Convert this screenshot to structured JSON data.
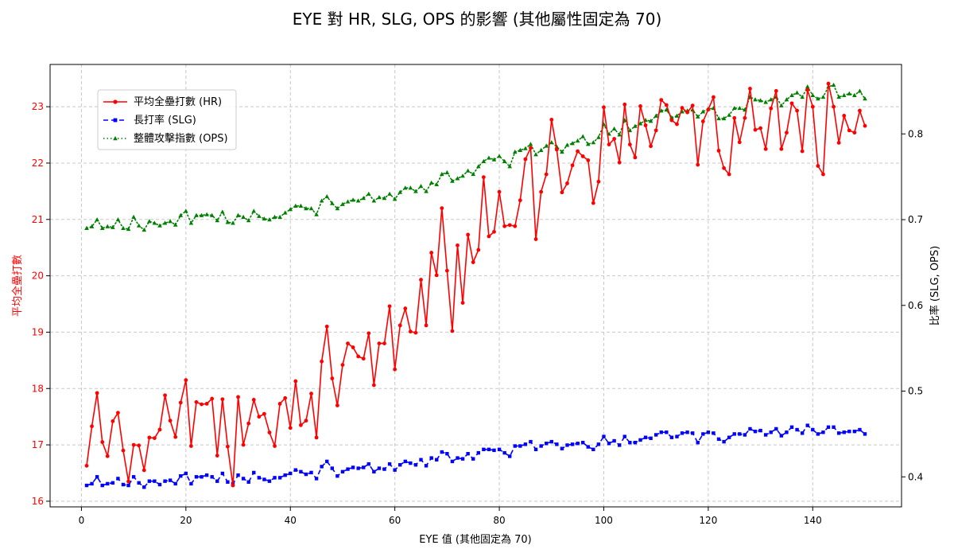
{
  "chart_data": {
    "type": "line",
    "title": "EYE 對 HR, SLG, OPS 的影響 (其他屬性固定為 70)",
    "xlabel": "EYE 值 (其他固定為 70)",
    "ylabel_left": "平均全壘打數",
    "ylabel_right": "比率 (SLG, OPS)",
    "xlim": [
      -6,
      157
    ],
    "ylim_left": [
      15.9,
      23.75
    ],
    "ylim_right": [
      0.365,
      0.881
    ],
    "x_ticks": [
      0,
      20,
      40,
      60,
      80,
      100,
      120,
      140
    ],
    "y_ticks_left": [
      16,
      17,
      18,
      19,
      20,
      21,
      22,
      23
    ],
    "y_ticks_right": [
      0.4,
      0.5,
      0.6,
      0.7,
      0.8
    ],
    "y_ticks_right_labels": [
      "0.4",
      "0.5",
      "0.6",
      "0.7",
      "0.8"
    ],
    "grid": true,
    "legend_position": "top-left",
    "x": [
      1,
      2,
      3,
      4,
      5,
      6,
      7,
      8,
      9,
      10,
      11,
      12,
      13,
      14,
      15,
      16,
      17,
      18,
      19,
      20,
      21,
      22,
      23,
      24,
      25,
      26,
      27,
      28,
      29,
      30,
      31,
      32,
      33,
      34,
      35,
      36,
      37,
      38,
      39,
      40,
      41,
      42,
      43,
      44,
      45,
      46,
      47,
      48,
      49,
      50,
      51,
      52,
      53,
      54,
      55,
      56,
      57,
      58,
      59,
      60,
      61,
      62,
      63,
      64,
      65,
      66,
      67,
      68,
      69,
      70,
      71,
      72,
      73,
      74,
      75,
      76,
      77,
      78,
      79,
      80,
      81,
      82,
      83,
      84,
      85,
      86,
      87,
      88,
      89,
      90,
      91,
      92,
      93,
      94,
      95,
      96,
      97,
      98,
      99,
      100,
      101,
      102,
      103,
      104,
      105,
      106,
      107,
      108,
      109,
      110,
      111,
      112,
      113,
      114,
      115,
      116,
      117,
      118,
      119,
      120,
      121,
      122,
      123,
      124,
      125,
      126,
      127,
      128,
      129,
      130,
      131,
      132,
      133,
      134,
      135,
      136,
      137,
      138,
      139,
      140,
      141,
      142,
      143,
      144,
      145,
      146,
      147,
      148,
      149,
      150
    ],
    "series": [
      {
        "name": "平均全壘打數 (HR)",
        "axis": "left",
        "color": "#ff0000",
        "style": "solid",
        "marker": "circle",
        "values": [
          16.63,
          17.33,
          17.92,
          17.05,
          16.8,
          17.42,
          17.57,
          16.9,
          16.35,
          17.0,
          16.99,
          16.55,
          17.13,
          17.12,
          17.27,
          17.88,
          17.43,
          17.14,
          17.75,
          18.15,
          16.98,
          17.76,
          17.72,
          17.73,
          17.82,
          16.81,
          17.81,
          16.97,
          16.28,
          17.85,
          17.0,
          17.38,
          17.8,
          17.5,
          17.55,
          17.22,
          16.98,
          17.73,
          17.83,
          17.3,
          18.13,
          17.35,
          17.43,
          17.91,
          17.13,
          18.48,
          19.1,
          18.18,
          17.7,
          18.42,
          18.8,
          18.73,
          18.57,
          18.53,
          18.98,
          18.06,
          18.8,
          18.8,
          19.46,
          18.34,
          19.12,
          19.42,
          19.01,
          18.99,
          19.93,
          19.12,
          20.41,
          20.01,
          21.2,
          20.09,
          19.02,
          20.54,
          19.52,
          20.73,
          20.24,
          20.46,
          21.75,
          20.7,
          20.78,
          21.49,
          20.88,
          20.9,
          20.88,
          21.34,
          22.07,
          22.27,
          20.65,
          21.49,
          21.8,
          22.77,
          22.24,
          21.48,
          21.64,
          21.96,
          22.21,
          22.12,
          22.05,
          21.29,
          21.67,
          22.99,
          22.33,
          22.43,
          22.01,
          23.04,
          22.33,
          22.1,
          23.01,
          22.67,
          22.3,
          22.58,
          23.12,
          23.03,
          22.76,
          22.69,
          22.98,
          22.9,
          23.02,
          21.97,
          22.74,
          22.95,
          23.17,
          22.22,
          21.91,
          21.8,
          22.8,
          22.37,
          22.8,
          23.32,
          22.59,
          22.62,
          22.25,
          22.97,
          23.28,
          22.25,
          22.54,
          23.06,
          22.93,
          22.21,
          23.3,
          23.0,
          21.95,
          21.8,
          23.41,
          23.0,
          22.36,
          22.84,
          22.58,
          22.54,
          22.93,
          22.66
        ]
      },
      {
        "name": "長打率 (SLG)",
        "axis": "right",
        "color": "#0000ff",
        "style": "dashed",
        "marker": "square",
        "values": [
          0.39,
          0.392,
          0.4,
          0.39,
          0.392,
          0.393,
          0.398,
          0.391,
          0.39,
          0.4,
          0.393,
          0.388,
          0.395,
          0.395,
          0.391,
          0.395,
          0.396,
          0.392,
          0.401,
          0.404,
          0.392,
          0.4,
          0.4,
          0.402,
          0.4,
          0.395,
          0.404,
          0.394,
          0.392,
          0.402,
          0.398,
          0.394,
          0.405,
          0.399,
          0.397,
          0.395,
          0.399,
          0.399,
          0.402,
          0.404,
          0.408,
          0.406,
          0.403,
          0.405,
          0.398,
          0.412,
          0.418,
          0.41,
          0.401,
          0.406,
          0.409,
          0.411,
          0.41,
          0.411,
          0.415,
          0.406,
          0.41,
          0.409,
          0.415,
          0.408,
          0.414,
          0.418,
          0.416,
          0.414,
          0.42,
          0.413,
          0.422,
          0.42,
          0.429,
          0.427,
          0.418,
          0.422,
          0.421,
          0.427,
          0.421,
          0.428,
          0.432,
          0.432,
          0.431,
          0.432,
          0.428,
          0.424,
          0.436,
          0.436,
          0.438,
          0.441,
          0.432,
          0.436,
          0.439,
          0.441,
          0.438,
          0.433,
          0.437,
          0.438,
          0.439,
          0.44,
          0.435,
          0.432,
          0.438,
          0.447,
          0.439,
          0.442,
          0.437,
          0.447,
          0.44,
          0.44,
          0.443,
          0.446,
          0.445,
          0.449,
          0.452,
          0.452,
          0.446,
          0.447,
          0.451,
          0.452,
          0.451,
          0.44,
          0.45,
          0.452,
          0.451,
          0.444,
          0.441,
          0.446,
          0.45,
          0.45,
          0.449,
          0.456,
          0.453,
          0.454,
          0.449,
          0.452,
          0.456,
          0.448,
          0.452,
          0.458,
          0.455,
          0.451,
          0.46,
          0.455,
          0.45,
          0.452,
          0.458,
          0.458,
          0.451,
          0.452,
          0.453,
          0.453,
          0.455,
          0.45
        ]
      },
      {
        "name": "整體攻擊指數 (OPS)",
        "axis": "right",
        "color": "#008000",
        "style": "dotted",
        "marker": "triangle",
        "values": [
          0.69,
          0.692,
          0.7,
          0.69,
          0.692,
          0.691,
          0.7,
          0.69,
          0.689,
          0.703,
          0.693,
          0.688,
          0.698,
          0.696,
          0.693,
          0.696,
          0.698,
          0.694,
          0.705,
          0.71,
          0.696,
          0.705,
          0.705,
          0.706,
          0.705,
          0.699,
          0.709,
          0.697,
          0.696,
          0.705,
          0.703,
          0.699,
          0.71,
          0.704,
          0.701,
          0.7,
          0.703,
          0.703,
          0.708,
          0.712,
          0.716,
          0.716,
          0.713,
          0.713,
          0.706,
          0.722,
          0.727,
          0.719,
          0.713,
          0.718,
          0.721,
          0.723,
          0.722,
          0.725,
          0.73,
          0.722,
          0.726,
          0.725,
          0.73,
          0.724,
          0.732,
          0.737,
          0.737,
          0.733,
          0.739,
          0.733,
          0.743,
          0.741,
          0.753,
          0.755,
          0.745,
          0.748,
          0.751,
          0.757,
          0.753,
          0.762,
          0.768,
          0.772,
          0.77,
          0.774,
          0.768,
          0.762,
          0.779,
          0.781,
          0.783,
          0.788,
          0.776,
          0.781,
          0.786,
          0.79,
          0.785,
          0.779,
          0.787,
          0.789,
          0.792,
          0.797,
          0.788,
          0.79,
          0.796,
          0.811,
          0.8,
          0.806,
          0.799,
          0.816,
          0.804,
          0.809,
          0.812,
          0.816,
          0.815,
          0.821,
          0.827,
          0.828,
          0.819,
          0.821,
          0.826,
          0.827,
          0.828,
          0.82,
          0.826,
          0.829,
          0.83,
          0.818,
          0.818,
          0.822,
          0.83,
          0.83,
          0.828,
          0.843,
          0.84,
          0.839,
          0.837,
          0.84,
          0.843,
          0.833,
          0.84,
          0.845,
          0.848,
          0.843,
          0.855,
          0.845,
          0.841,
          0.843,
          0.855,
          0.857,
          0.843,
          0.845,
          0.847,
          0.845,
          0.85,
          0.841
        ]
      }
    ]
  }
}
